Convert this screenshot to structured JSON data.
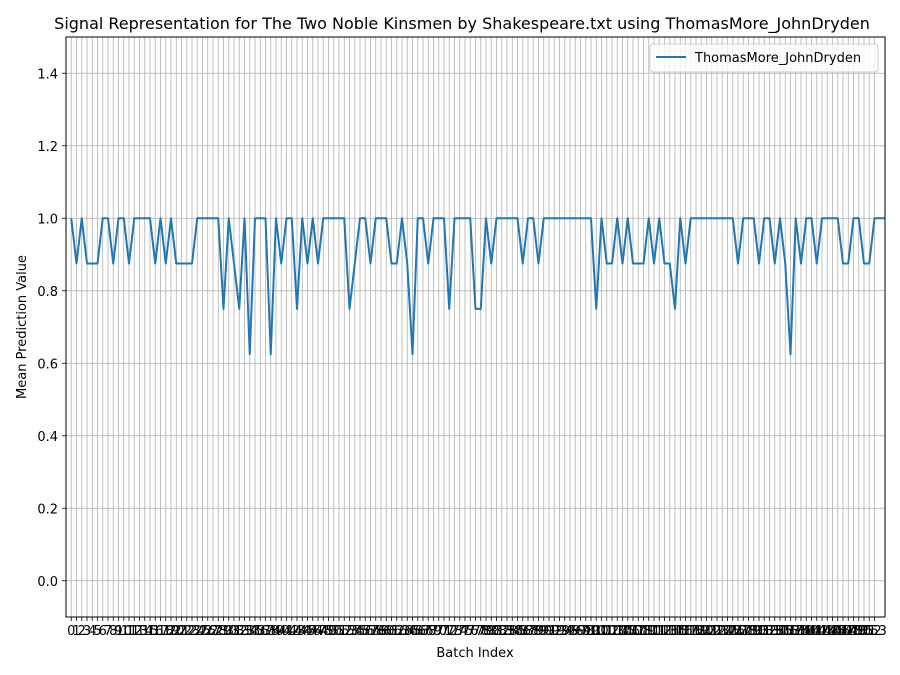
{
  "chart_data": {
    "type": "line",
    "title": "Signal Representation for The Two Noble Kinsmen by Shakespeare.txt using ThomasMore_JohnDryden",
    "xlabel": "Batch Index",
    "ylabel": "Mean Prediction Value",
    "xlim": [
      -1,
      155
    ],
    "ylim": [
      -0.1,
      1.5
    ],
    "yticks": [
      0.0,
      0.2,
      0.4,
      0.6,
      0.8,
      1.0,
      1.2,
      1.4
    ],
    "grid": true,
    "legend_position": "top-right",
    "colors": {
      "series": "#1f77b4",
      "grid": "#b0b0b0",
      "axis": "#000000"
    },
    "xticks": [
      0,
      1,
      2,
      3,
      4,
      5,
      6,
      7,
      8,
      9,
      10,
      11,
      12,
      13,
      14,
      15,
      16,
      17,
      18,
      19,
      20,
      21,
      22,
      23,
      24,
      25,
      26,
      27,
      28,
      29,
      30,
      31,
      32,
      33,
      34,
      35,
      36,
      37,
      38,
      39,
      40,
      41,
      42,
      43,
      44,
      45,
      46,
      47,
      48,
      49,
      50,
      51,
      52,
      53,
      54,
      55,
      56,
      57,
      58,
      59,
      60,
      61,
      62,
      63,
      64,
      65,
      66,
      67,
      68,
      69,
      70,
      71,
      72,
      73,
      74,
      75,
      76,
      77,
      78,
      79,
      80,
      81,
      82,
      83,
      84,
      85,
      86,
      87,
      88,
      89,
      90,
      91,
      92,
      93,
      94,
      95,
      96,
      97,
      98,
      99,
      100,
      101,
      102,
      103,
      104,
      105,
      106,
      107,
      108,
      109,
      110,
      111,
      112,
      113,
      114,
      115,
      116,
      117,
      118,
      119,
      120,
      121,
      122,
      123,
      124,
      125,
      126,
      127,
      128,
      129,
      130,
      131,
      132,
      133,
      134,
      135,
      136,
      137,
      138,
      139,
      140,
      141,
      142,
      143,
      144,
      145,
      146,
      147,
      148,
      149,
      150,
      151,
      152,
      153
    ],
    "series": [
      {
        "name": "ThomasMore_JohnDryden",
        "values": [
          1.0,
          0.875,
          1.0,
          0.875,
          0.875,
          0.875,
          1.0,
          1.0,
          0.875,
          1.0,
          1.0,
          0.875,
          1.0,
          1.0,
          1.0,
          1.0,
          0.875,
          1.0,
          0.875,
          1.0,
          0.875,
          0.875,
          0.875,
          0.875,
          1.0,
          1.0,
          1.0,
          1.0,
          1.0,
          0.75,
          1.0,
          0.875,
          0.75,
          1.0,
          0.625,
          1.0,
          1.0,
          1.0,
          0.625,
          1.0,
          0.875,
          1.0,
          1.0,
          0.75,
          1.0,
          0.875,
          1.0,
          0.875,
          1.0,
          1.0,
          1.0,
          1.0,
          1.0,
          0.75,
          0.875,
          1.0,
          1.0,
          0.875,
          1.0,
          1.0,
          1.0,
          0.875,
          0.875,
          1.0,
          0.875,
          0.625,
          1.0,
          1.0,
          0.875,
          1.0,
          1.0,
          1.0,
          0.75,
          1.0,
          1.0,
          1.0,
          1.0,
          0.75,
          0.75,
          1.0,
          0.875,
          1.0,
          1.0,
          1.0,
          1.0,
          1.0,
          0.875,
          1.0,
          1.0,
          0.875,
          1.0,
          1.0,
          1.0,
          1.0,
          1.0,
          1.0,
          1.0,
          1.0,
          1.0,
          1.0,
          0.75,
          1.0,
          0.875,
          0.875,
          1.0,
          0.875,
          1.0,
          0.875,
          0.875,
          0.875,
          1.0,
          0.875,
          1.0,
          0.875,
          0.875,
          0.75,
          1.0,
          0.875,
          1.0,
          1.0,
          1.0,
          1.0,
          1.0,
          1.0,
          1.0,
          1.0,
          1.0,
          0.875,
          1.0,
          1.0,
          1.0,
          0.875,
          1.0,
          1.0,
          0.875,
          1.0,
          0.875,
          0.625,
          1.0,
          0.875,
          1.0,
          1.0,
          0.875,
          1.0,
          1.0,
          1.0,
          1.0,
          0.875,
          0.875,
          1.0,
          1.0,
          0.875,
          0.875,
          1.0,
          1.0,
          1.0
        ]
      }
    ]
  }
}
